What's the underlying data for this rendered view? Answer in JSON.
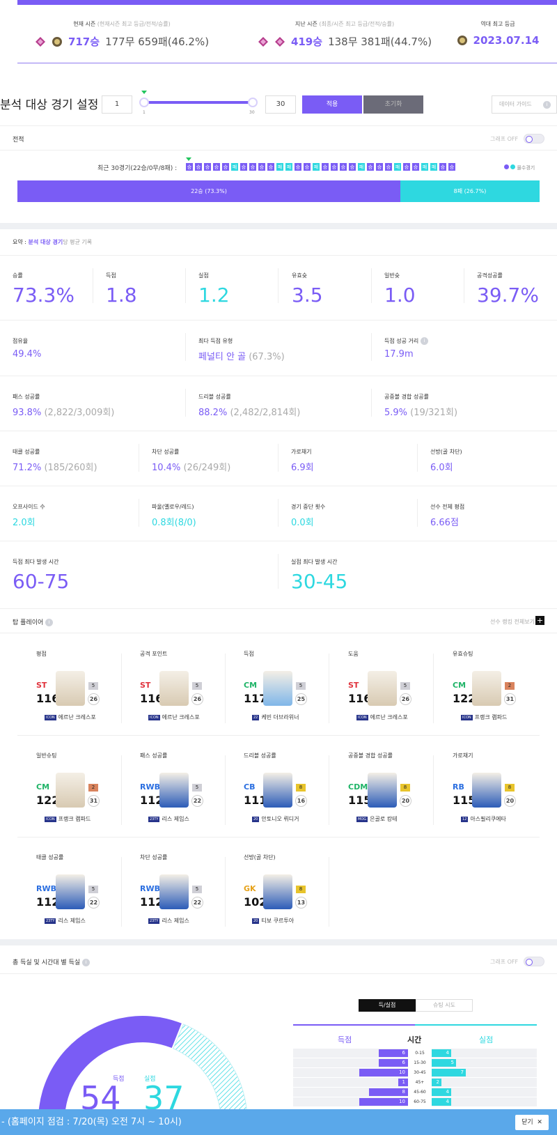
{
  "seasons": {
    "current": {
      "label": "현재 시즌",
      "sub": "(현재시즌 최고 등급/전적/승률)",
      "wins": "717승",
      "rest": "177무 659패(46.2%)"
    },
    "previous": {
      "label": "지난 시즌",
      "sub": "(최종/시즌 최고 등급/전적/승률)",
      "wins": "419승",
      "rest": "138무 381패(44.7%)"
    },
    "best": {
      "label": "역대 최고 등급",
      "date": "2023.07.14"
    }
  },
  "settings": {
    "title": "분석 대상 경기 설정",
    "from": "1",
    "to": "30",
    "slider_min": "1",
    "slider_max": "30",
    "apply": "적용",
    "reset": "초기화",
    "guide": "데이터 가이드"
  },
  "record": {
    "title": "전적",
    "graph_toggle": "그래프 OFF",
    "recent": "최근 30경기(22승/0무/8패) :",
    "legend": "몰수경기",
    "streak": [
      "승",
      "승",
      "승",
      "승",
      "승",
      "패",
      "승",
      "승",
      "승",
      "승",
      "패",
      "패",
      "승",
      "승",
      "패",
      "승",
      "승",
      "승",
      "승",
      "패",
      "승",
      "승",
      "승",
      "패",
      "승",
      "승",
      "패",
      "패",
      "승",
      "승"
    ],
    "win_fraction": 0.733,
    "win_label": "22승 (73.3%)",
    "loss_label": "8패 (26.7%)"
  },
  "summary": {
    "prefix": "요약 :",
    "highlight": "분석 대상 경기",
    "suffix": "당 평균 기록",
    "big": [
      {
        "k": "승률",
        "v": "73.3%"
      },
      {
        "k": "득점",
        "v": "1.8"
      },
      {
        "k": "실점",
        "v": "1.2"
      },
      {
        "k": "유효슛",
        "v": "3.5"
      },
      {
        "k": "일반슛",
        "v": "1.0"
      },
      {
        "k": "공격성공률",
        "v": "39.7%"
      }
    ],
    "row2": [
      {
        "k": "점유율",
        "v": "49.4%",
        "g": ""
      },
      {
        "k": "최다 득점 유형",
        "v": "페널티 안 골",
        "g": "(67.3%)"
      },
      {
        "k": "득점 성공 거리",
        "v": "17.9m",
        "g": ""
      }
    ],
    "row3": [
      {
        "k": "패스 성공률",
        "v": "93.8%",
        "g": "(2,822/3,009회)"
      },
      {
        "k": "드리블 성공률",
        "v": "88.2%",
        "g": "(2,482/2,814회)"
      },
      {
        "k": "공중볼 경합 성공률",
        "v": "5.9%",
        "g": "(19/321회)"
      }
    ],
    "row4": [
      {
        "k": "태클 성공률",
        "v": "71.2%",
        "g": "(185/260회)"
      },
      {
        "k": "차단 성공률",
        "v": "10.4%",
        "g": "(26/249회)"
      },
      {
        "k": "가로채기",
        "v": "6.9회",
        "g": ""
      },
      {
        "k": "선방(골 차단)",
        "v": "6.0회",
        "g": ""
      }
    ],
    "row5": [
      {
        "k": "오프사이드 수",
        "v": "2.0회",
        "g": ""
      },
      {
        "k": "파울(옐로우/레드)",
        "v": "0.8회(8/0)",
        "g": ""
      },
      {
        "k": "경기 중단 횟수",
        "v": "0.0회",
        "g": ""
      },
      {
        "k": "선수 전체 평점",
        "v": "6.66점",
        "g": ""
      }
    ],
    "max_goal_time": {
      "k": "득점 최다 발생 시간",
      "v": "60-75"
    },
    "max_concede_time": {
      "k": "실점 최다 발생 시간",
      "v": "30-45"
    }
  },
  "top_players": {
    "title": "탑 플레이어",
    "more": "선수 랭킹 전체보기",
    "cards": [
      {
        "cat": "평점",
        "pos": "ST",
        "ovr": "116",
        "grade": "5",
        "lvl": "26",
        "name": "에르난 크레스포",
        "badge": "ICON"
      },
      {
        "cat": "공격 포인트",
        "pos": "ST",
        "ovr": "116",
        "grade": "5",
        "lvl": "26",
        "name": "에르난 크레스포",
        "badge": "ICON"
      },
      {
        "cat": "득점",
        "pos": "CM",
        "ovr": "117",
        "grade": "5",
        "lvl": "25",
        "name": "케빈 더브라위너",
        "badge": "22"
      },
      {
        "cat": "도움",
        "pos": "ST",
        "ovr": "116",
        "grade": "5",
        "lvl": "26",
        "name": "에르난 크레스포",
        "badge": "ICON"
      },
      {
        "cat": "유효슈팅",
        "pos": "CM",
        "ovr": "122",
        "grade": "2",
        "lvl": "31",
        "name": "프랭크 램파드",
        "badge": "ICON"
      },
      {
        "cat": "일반슈팅",
        "pos": "CM",
        "ovr": "122",
        "grade": "2",
        "lvl": "31",
        "name": "프랭크 램파드",
        "badge": "ICON"
      },
      {
        "cat": "패스 성공률",
        "pos": "RWB",
        "ovr": "112",
        "grade": "5",
        "lvl": "22",
        "name": "리스 제임스",
        "badge": "23TY"
      },
      {
        "cat": "드리블 성공률",
        "pos": "CB",
        "ovr": "111",
        "grade": "8",
        "lvl": "16",
        "name": "안토니오 뤼디거",
        "badge": "20"
      },
      {
        "cat": "공중볼 경합 성공률",
        "pos": "CDM",
        "ovr": "115",
        "grade": "8",
        "lvl": "20",
        "name": "은골로 캉테",
        "badge": "MOG"
      },
      {
        "cat": "가로채기",
        "pos": "RB",
        "ovr": "115",
        "grade": "8",
        "lvl": "20",
        "name": "아스필리쿠에타",
        "badge": "12"
      },
      {
        "cat": "태클 성공률",
        "pos": "RWB",
        "ovr": "112",
        "grade": "5",
        "lvl": "22",
        "name": "리스 제임스",
        "badge": "23TY"
      },
      {
        "cat": "차단 성공률",
        "pos": "RWB",
        "ovr": "112",
        "grade": "5",
        "lvl": "22",
        "name": "리스 제임스",
        "badge": "23TY"
      },
      {
        "cat": "선방(골 차단)",
        "pos": "GK",
        "ovr": "102",
        "grade": "8",
        "lvl": "13",
        "name": "티보 쿠르투아",
        "badge": "20"
      }
    ]
  },
  "goals_time": {
    "title": "총 득실 및 시간대 별 득실",
    "graph_toggle": "그래프 OFF",
    "scored_label": "득점",
    "conceded_label": "실점",
    "scored": "54",
    "conceded": "37",
    "tab_on": "득/실점",
    "tab_off": "슈팅 시도",
    "col_time": "시간",
    "rows": [
      {
        "t": "0-15",
        "gf": 6,
        "ga": 4
      },
      {
        "t": "15-30",
        "gf": 6,
        "ga": 5
      },
      {
        "t": "30-45",
        "gf": 10,
        "ga": 7
      },
      {
        "t": "45+",
        "gf": 1,
        "ga": 2
      },
      {
        "t": "45-60",
        "gf": 8,
        "ga": 4
      },
      {
        "t": "60-75",
        "gf": 10,
        "ga": 4
      }
    ]
  },
  "notice": {
    "text": "- (홈페이지 점검 : 7/20(목) 오전 7시 ~ 10시)",
    "close": "닫기"
  }
}
